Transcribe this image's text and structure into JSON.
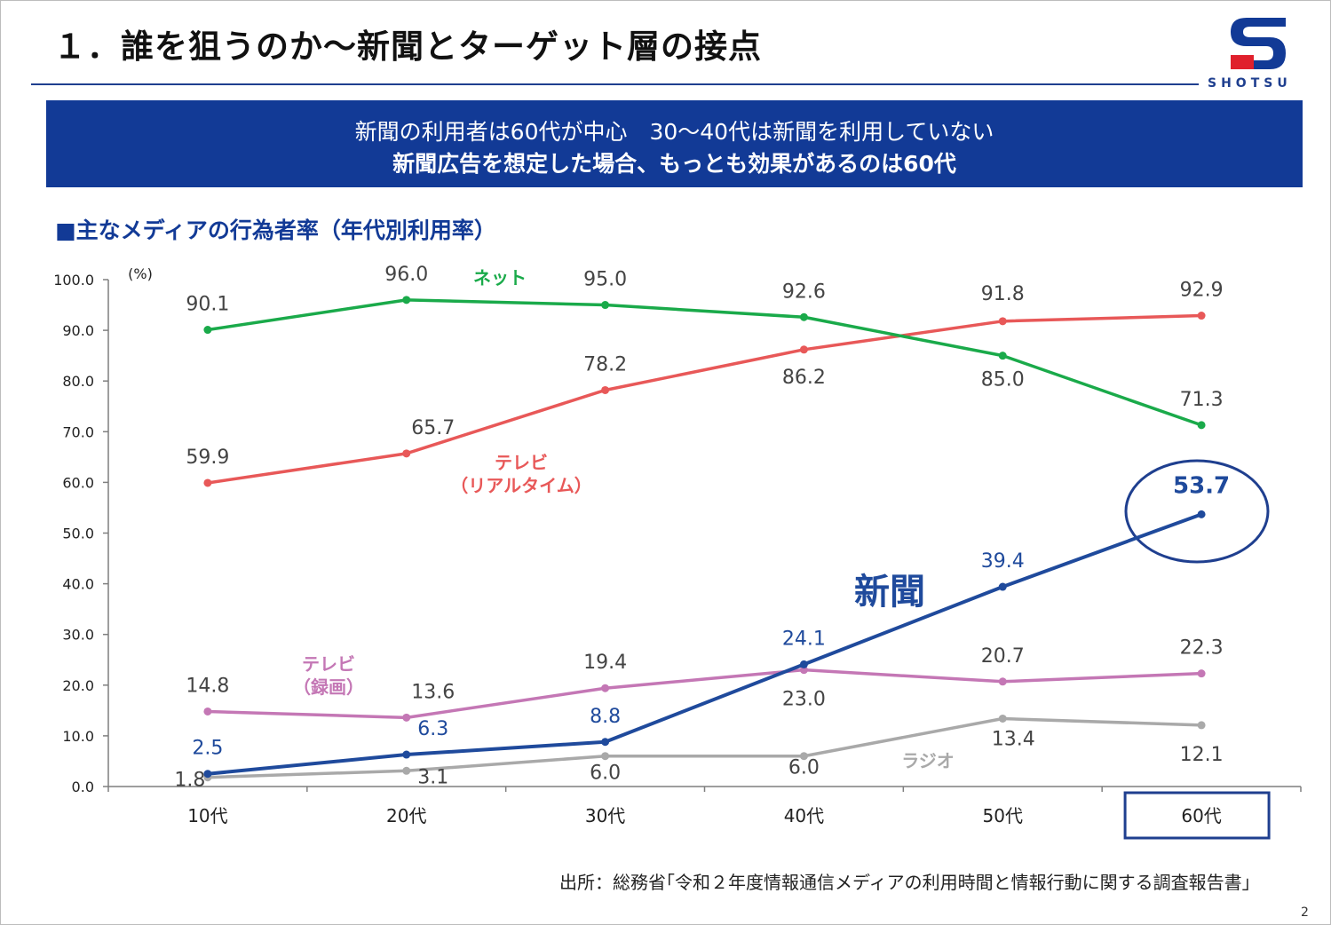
{
  "slide": {
    "title": "１．誰を狙うのか～新聞とターゲット層の接点",
    "logo_text": "SHOTSU",
    "banner_line1": "新聞の利用者は60代が中心　30～40代は新聞を利用していない",
    "banner_line2": "新聞広告を想定した場合、もっとも効果があるのは60代",
    "section_heading": "■主なメディアの行為者率（年代別利用率）",
    "source": "出所：総務省｢令和２年度情報通信メディアの利用時間と情報行動に関する調査報告書｣",
    "page_number": "2"
  },
  "colors": {
    "brand_blue": "#123a96",
    "logo_red": "#e0202c"
  },
  "chart_data": {
    "type": "line",
    "title": "",
    "xlabel": "",
    "ylabel": "(%)",
    "ylim": [
      0,
      100
    ],
    "yticks": [
      "0.0",
      "10.0",
      "20.0",
      "30.0",
      "40.0",
      "50.0",
      "60.0",
      "70.0",
      "80.0",
      "90.0",
      "100.0"
    ],
    "categories": [
      "10代",
      "20代",
      "30代",
      "40代",
      "50代",
      "60代"
    ],
    "grid": false,
    "highlight": {
      "category": "60代",
      "series": "新聞",
      "value": 53.7
    },
    "series": [
      {
        "name": "ネット",
        "color": "#1aaa4a",
        "label_color": "#444444",
        "values": [
          90.1,
          96.0,
          95.0,
          92.6,
          85.0,
          71.3
        ],
        "labels": [
          "90.1",
          "96.0",
          "95.0",
          "92.6",
          "85.0",
          "71.3"
        ]
      },
      {
        "name": "テレビ（リアルタイム）",
        "color": "#e85858",
        "label_color": "#444444",
        "values": [
          59.9,
          65.7,
          78.2,
          86.2,
          91.8,
          92.9
        ],
        "labels": [
          "59.9",
          "65.7",
          "78.2",
          "86.2",
          "91.8",
          "92.9"
        ]
      },
      {
        "name": "新聞",
        "color": "#1f4a9c",
        "label_color": "#1f4a9c",
        "values": [
          2.5,
          6.3,
          8.8,
          24.1,
          39.4,
          53.7
        ],
        "labels": [
          "2.5",
          "6.3",
          "8.8",
          "24.1",
          "39.4",
          "53.7"
        ]
      },
      {
        "name": "テレビ（録画）",
        "color": "#c477b5",
        "label_color": "#444444",
        "values": [
          14.8,
          13.6,
          19.4,
          23.0,
          20.7,
          22.3
        ],
        "labels": [
          "14.8",
          "13.6",
          "19.4",
          "23.0",
          "20.7",
          "22.3"
        ]
      },
      {
        "name": "ラジオ",
        "color": "#a9a9a9",
        "label_color": "#444444",
        "values": [
          1.8,
          3.1,
          6.0,
          6.0,
          13.4,
          12.1
        ],
        "labels": [
          "1.8",
          "3.1",
          "6.0",
          "6.0",
          "13.4",
          "12.1"
        ]
      }
    ],
    "series_tags": [
      {
        "series": "ネット",
        "lines": [
          "ネット"
        ]
      },
      {
        "series": "テレビ（リアルタイム）",
        "lines": [
          "テレビ",
          "（リアルタイム）"
        ]
      },
      {
        "series": "新聞",
        "lines": [
          "新聞"
        ]
      },
      {
        "series": "テレビ（録画）",
        "lines": [
          "テレビ",
          "（録画）"
        ]
      },
      {
        "series": "ラジオ",
        "lines": [
          "ラジオ"
        ]
      }
    ]
  }
}
